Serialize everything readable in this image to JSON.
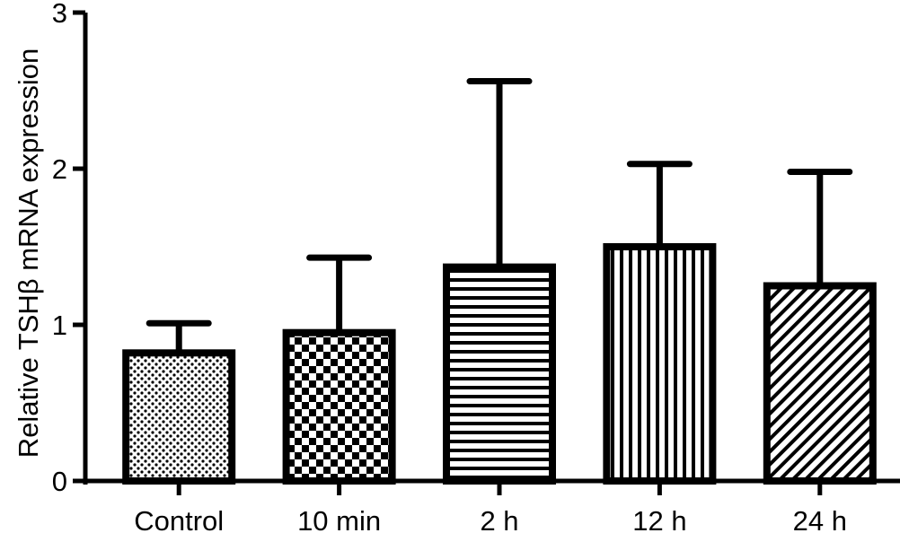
{
  "chart_data": {
    "type": "bar",
    "title": "",
    "xlabel": "",
    "ylabel": "Relative TSHβ mRNA expression",
    "ylim": [
      0,
      3
    ],
    "yticks": [
      0,
      1,
      2,
      3
    ],
    "grid": false,
    "categories": [
      "Control",
      "10 min",
      "2 h",
      "12 h",
      "24 h"
    ],
    "values": [
      0.82,
      0.95,
      1.37,
      1.5,
      1.25
    ],
    "error_upper": [
      1.01,
      1.43,
      2.56,
      2.03,
      1.98
    ],
    "bar_patterns": [
      "dots",
      "checker",
      "horizontal-stripes",
      "vertical-stripes",
      "diagonal-stripes"
    ],
    "colors": {
      "ink": "#000000",
      "background": "#ffffff"
    }
  }
}
